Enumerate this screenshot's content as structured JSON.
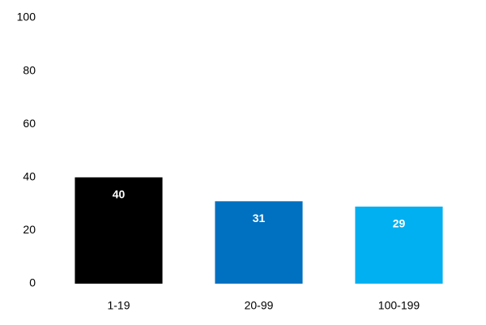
{
  "chart_data": {
    "type": "bar",
    "categories": [
      "1-19",
      "20-99",
      "100-199"
    ],
    "values": [
      40,
      31,
      29
    ],
    "colors": [
      "#000000",
      "#0070c0",
      "#00b0f0"
    ],
    "ylim": [
      0,
      100
    ],
    "yticks": [
      0,
      20,
      40,
      60,
      80,
      100
    ],
    "grid": false
  }
}
